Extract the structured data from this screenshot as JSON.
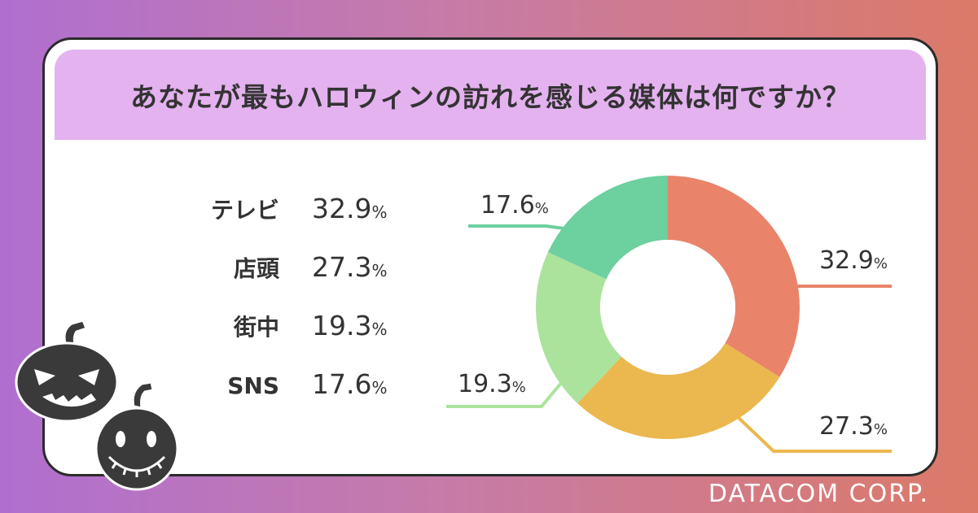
{
  "title": "あなたが最もハロウィンの訪れを感じる媒体は何ですか？",
  "footer": "DATACOM CORP.",
  "legend": [
    {
      "label": "テレビ",
      "value": "32.9",
      "unit": "%"
    },
    {
      "label": "店頭",
      "value": "27.3",
      "unit": "%"
    },
    {
      "label": "街中",
      "value": "19.3",
      "unit": "%"
    },
    {
      "label": "SNS",
      "value": "17.6",
      "unit": "%"
    }
  ],
  "chart_data": {
    "type": "pie",
    "title": "あなたが最もハロウィンの訪れを感じる媒体は何ですか？",
    "categories": [
      "テレビ",
      "店頭",
      "街中",
      "SNS"
    ],
    "values": [
      32.9,
      27.3,
      19.3,
      17.6
    ],
    "labels": [
      "32.9%",
      "27.3%",
      "19.3%",
      "17.6%"
    ],
    "colors": [
      "#e9846a",
      "#ebb84f",
      "#abe39c",
      "#6cd09f"
    ],
    "donut": true
  },
  "decorations": [
    "jack-o-lantern-icon",
    "jack-o-lantern-icon"
  ]
}
